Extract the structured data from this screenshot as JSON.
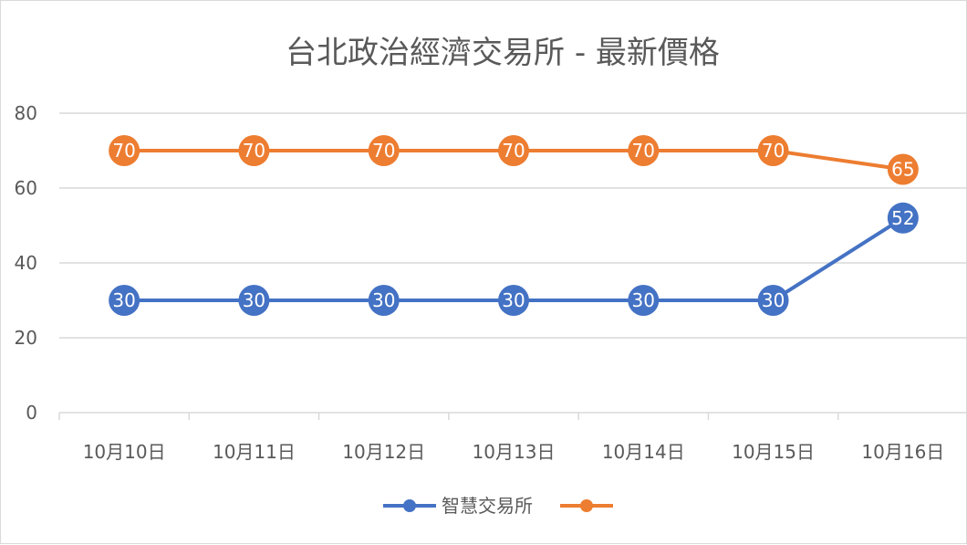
{
  "chart_data": {
    "type": "line",
    "title": "台北政治經濟交易所 - 最新價格",
    "categories": [
      "10月10日",
      "10月11日",
      "10月12日",
      "10月13日",
      "10月14日",
      "10月15日",
      "10月16日"
    ],
    "series": [
      {
        "name": "智慧交易所",
        "color": "#4472C4",
        "values": [
          30,
          30,
          30,
          30,
          30,
          30,
          52
        ]
      },
      {
        "name": "",
        "color": "#ED7D31",
        "values": [
          70,
          70,
          70,
          70,
          70,
          70,
          65
        ]
      }
    ],
    "ylim": [
      0,
      80
    ],
    "yticks": [
      0,
      20,
      40,
      60,
      80
    ],
    "grid": true,
    "legend": "bottom",
    "data_labels": true
  }
}
